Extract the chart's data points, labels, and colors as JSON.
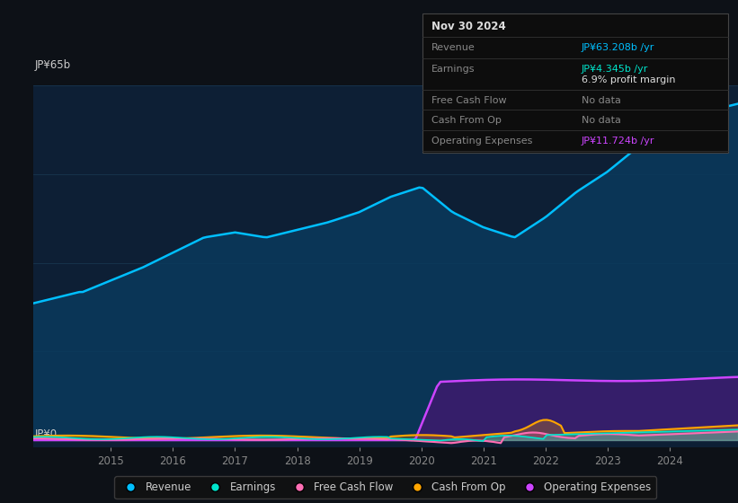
{
  "background_color": "#0d1117",
  "plot_bg_color": "#0d1f35",
  "y_label_top": "JP¥65b",
  "y_label_bottom": "JP¥0",
  "tooltip": {
    "date": "Nov 30 2024",
    "revenue_label": "Revenue",
    "revenue_value": "JP¥63.208b /yr",
    "earnings_label": "Earnings",
    "earnings_value": "JP¥4.345b /yr",
    "profit_margin": "6.9% profit margin",
    "fcf_label": "Free Cash Flow",
    "fcf_value": "No data",
    "cashop_label": "Cash From Op",
    "cashop_value": "No data",
    "opex_label": "Operating Expenses",
    "opex_value": "JP¥11.724b /yr"
  },
  "x_ticks": [
    "2015",
    "2016",
    "2017",
    "2018",
    "2019",
    "2020",
    "2021",
    "2022",
    "2023",
    "2024"
  ],
  "revenue_color": "#00bfff",
  "earnings_color": "#00e5cc",
  "fcf_color": "#ff6eb4",
  "cashop_color": "#ffa500",
  "opex_color": "#cc44ff",
  "revenue_fill_color": "#0a3a5c",
  "opex_fill_color": "#3d1a6e",
  "legend": [
    {
      "label": "Revenue",
      "color": "#00bfff"
    },
    {
      "label": "Earnings",
      "color": "#00e5cc"
    },
    {
      "label": "Free Cash Flow",
      "color": "#ff6eb4"
    },
    {
      "label": "Cash From Op",
      "color": "#ffa500"
    },
    {
      "label": "Operating Expenses",
      "color": "#cc44ff"
    }
  ]
}
